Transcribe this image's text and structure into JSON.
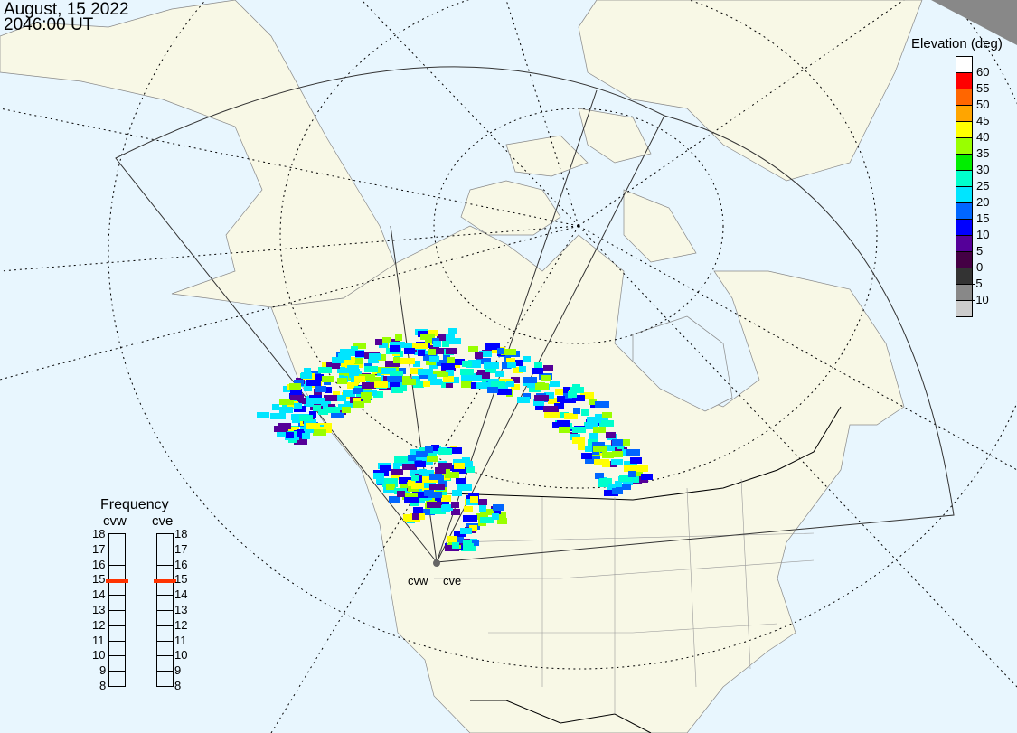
{
  "header": {
    "date": "August, 15 2022",
    "time": "2046:00 UT"
  },
  "legend": {
    "title": "Elevation (deg)",
    "ticks": [
      "60",
      "55",
      "50",
      "45",
      "40",
      "35",
      "30",
      "25",
      "20",
      "15",
      "10",
      "5",
      "0",
      "-5",
      "-10"
    ],
    "colors": [
      "#ffffff",
      "#ff0000",
      "#ff6600",
      "#ffa500",
      "#ffff00",
      "#99ff00",
      "#00ee00",
      "#00ffcc",
      "#00e5ff",
      "#0066ff",
      "#0000ff",
      "#550099",
      "#440044",
      "#333333",
      "#888888",
      "#cccccc"
    ]
  },
  "frequency": {
    "title": "Frequency",
    "radars": [
      {
        "name": "cvw",
        "value_mhz": 14.9
      },
      {
        "name": "cve",
        "value_mhz": 14.9
      }
    ],
    "ticks": [
      "18",
      "17",
      "16",
      "15",
      "14",
      "13",
      "12",
      "11",
      "10",
      "9",
      "8"
    ],
    "marker_color": "#ff3300"
  },
  "stations": {
    "west": "cvw",
    "east": "cve"
  },
  "map": {
    "land_color": "#f8f8e6",
    "ocean_color": "#e8f6fe"
  }
}
